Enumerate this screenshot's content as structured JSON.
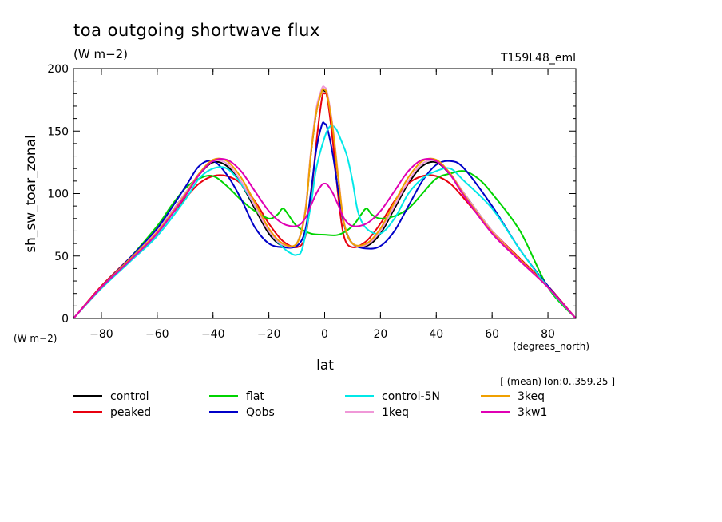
{
  "chart_data": {
    "type": "line",
    "title": "toa outgoing shortwave flux",
    "title_units": "(W m−2)",
    "run_label": "T159L48_eml",
    "xlabel": "lat",
    "x_units": "(degrees_north)",
    "ylabel": "sh_sw_toar_zonal",
    "y_units": "(W m−2)",
    "averaging_note": "[ (mean) lon:0..359.25 ]",
    "xlim": [
      -90,
      90
    ],
    "ylim": [
      0,
      200
    ],
    "x_ticks": [
      -80,
      -60,
      -40,
      -20,
      0,
      20,
      40,
      60,
      80
    ],
    "x_tick_labels": [
      "−80",
      "−60",
      "−40",
      "−20",
      "0",
      "20",
      "40",
      "60",
      "80"
    ],
    "y_ticks": [
      0,
      50,
      100,
      150,
      200
    ],
    "y_tick_labels": [
      "0",
      "50",
      "100",
      "150",
      "200"
    ],
    "legend_placement": "bottom",
    "series": [
      {
        "name": "control",
        "color": "#000000",
        "x": [
          -90,
          -80,
          -70,
          -60,
          -50,
          -45,
          -40,
          -35,
          -30,
          -25,
          -20,
          -15,
          -10,
          -7,
          -5,
          -3,
          -1,
          0,
          1,
          3,
          5,
          7,
          10,
          15,
          20,
          25,
          30,
          35,
          40,
          45,
          50,
          60,
          70,
          80,
          90
        ],
        "y": [
          0,
          25,
          47,
          70,
          100,
          115,
          125,
          122,
          108,
          88,
          68,
          58,
          60,
          85,
          130,
          165,
          182,
          182,
          178,
          150,
          110,
          75,
          60,
          58,
          68,
          88,
          108,
          122,
          125,
          115,
          100,
          70,
          47,
          25,
          0
        ]
      },
      {
        "name": "peaked",
        "color": "#e8000f",
        "x": [
          -90,
          -80,
          -70,
          -60,
          -50,
          -45,
          -40,
          -35,
          -30,
          -25,
          -20,
          -15,
          -10,
          -7,
          -5,
          -3,
          -1,
          0,
          1,
          3,
          5,
          7,
          10,
          15,
          20,
          25,
          30,
          35,
          40,
          45,
          50,
          60,
          70,
          80,
          90
        ],
        "y": [
          0,
          26,
          48,
          70,
          96,
          108,
          114,
          114,
          108,
          94,
          76,
          62,
          57,
          65,
          95,
          140,
          176,
          180,
          176,
          140,
          95,
          65,
          57,
          62,
          76,
          94,
          108,
          114,
          114,
          108,
          96,
          70,
          48,
          26,
          0
        ]
      },
      {
        "name": "flat",
        "color": "#00d400",
        "x": [
          -90,
          -80,
          -70,
          -60,
          -55,
          -50,
          -45,
          -40,
          -35,
          -30,
          -25,
          -20,
          -17,
          -15,
          -13,
          -10,
          -5,
          0,
          5,
          10,
          13,
          15,
          17,
          20,
          25,
          30,
          35,
          40,
          45,
          50,
          55,
          60,
          70,
          80,
          90
        ],
        "y": [
          0,
          25,
          48,
          74,
          90,
          104,
          112,
          114,
          106,
          95,
          86,
          80,
          83,
          88,
          83,
          74,
          68,
          67,
          67,
          74,
          83,
          88,
          83,
          80,
          82,
          88,
          100,
          112,
          116,
          118,
          112,
          100,
          70,
          25,
          0
        ]
      },
      {
        "name": "Qobs",
        "color": "#0000c8",
        "x": [
          -90,
          -80,
          -70,
          -60,
          -50,
          -45,
          -40,
          -35,
          -30,
          -25,
          -20,
          -15,
          -10,
          -7,
          -5,
          -3,
          -1,
          0,
          1,
          3,
          5,
          7,
          10,
          15,
          20,
          25,
          30,
          35,
          40,
          45,
          50,
          60,
          70,
          80,
          90
        ],
        "y": [
          0,
          25,
          48,
          72,
          105,
          122,
          126,
          115,
          96,
          73,
          60,
          57,
          58,
          70,
          100,
          135,
          155,
          156,
          152,
          130,
          100,
          75,
          60,
          56,
          58,
          70,
          90,
          110,
          123,
          126,
          120,
          90,
          55,
          26,
          0
        ]
      },
      {
        "name": "control-5N",
        "color": "#00e8e8",
        "x": [
          -90,
          -80,
          -70,
          -60,
          -50,
          -45,
          -40,
          -35,
          -30,
          -25,
          -20,
          -15,
          -12,
          -10,
          -8,
          -5,
          -3,
          0,
          2,
          4,
          6,
          8,
          10,
          12,
          15,
          20,
          25,
          30,
          35,
          40,
          45,
          50,
          60,
          70,
          80,
          90
        ],
        "y": [
          0,
          24,
          45,
          66,
          95,
          112,
          120,
          120,
          108,
          90,
          70,
          57,
          52,
          51,
          56,
          90,
          120,
          145,
          154,
          152,
          142,
          130,
          110,
          85,
          72,
          68,
          80,
          100,
          112,
          118,
          120,
          110,
          88,
          55,
          25,
          0
        ]
      },
      {
        "name": "1keq",
        "color": "#f098d8",
        "x": [
          -90,
          -80,
          -70,
          -60,
          -50,
          -45,
          -40,
          -35,
          -30,
          -25,
          -20,
          -15,
          -10,
          -7,
          -5,
          -3,
          -1,
          0,
          1,
          3,
          5,
          7,
          10,
          15,
          20,
          25,
          30,
          35,
          40,
          45,
          50,
          60,
          70,
          80,
          90
        ],
        "y": [
          0,
          25,
          47,
          70,
          100,
          116,
          126,
          124,
          110,
          90,
          70,
          59,
          60,
          86,
          132,
          168,
          184,
          185,
          180,
          152,
          112,
          76,
          60,
          59,
          70,
          90,
          110,
          124,
          126,
          116,
          100,
          70,
          47,
          25,
          0
        ]
      },
      {
        "name": "3keq",
        "color": "#f0a000",
        "x": [
          -90,
          -80,
          -70,
          -60,
          -50,
          -45,
          -40,
          -35,
          -30,
          -25,
          -20,
          -15,
          -10,
          -7,
          -5,
          -3,
          -1,
          0,
          1,
          3,
          5,
          7,
          10,
          15,
          20,
          25,
          30,
          35,
          40,
          45,
          50,
          60,
          70,
          80,
          90
        ],
        "y": [
          0,
          25,
          47,
          69,
          99,
          116,
          127,
          126,
          113,
          93,
          72,
          60,
          60,
          84,
          130,
          165,
          182,
          183,
          178,
          150,
          110,
          76,
          60,
          60,
          72,
          93,
          113,
          126,
          127,
          116,
          99,
          69,
          47,
          25,
          0
        ]
      },
      {
        "name": "3kw1",
        "color": "#e000b4",
        "x": [
          -90,
          -80,
          -70,
          -60,
          -50,
          -45,
          -40,
          -35,
          -30,
          -25,
          -20,
          -15,
          -10,
          -7,
          -5,
          -3,
          -1,
          0,
          1,
          3,
          5,
          7,
          10,
          15,
          20,
          25,
          30,
          35,
          40,
          45,
          50,
          60,
          70,
          80,
          90
        ],
        "y": [
          0,
          25,
          46,
          68,
          98,
          115,
          126,
          127,
          118,
          102,
          86,
          76,
          74,
          80,
          90,
          100,
          107,
          108,
          107,
          100,
          90,
          80,
          74,
          76,
          86,
          102,
          118,
          127,
          126,
          115,
          98,
          68,
          46,
          25,
          0
        ]
      }
    ]
  }
}
